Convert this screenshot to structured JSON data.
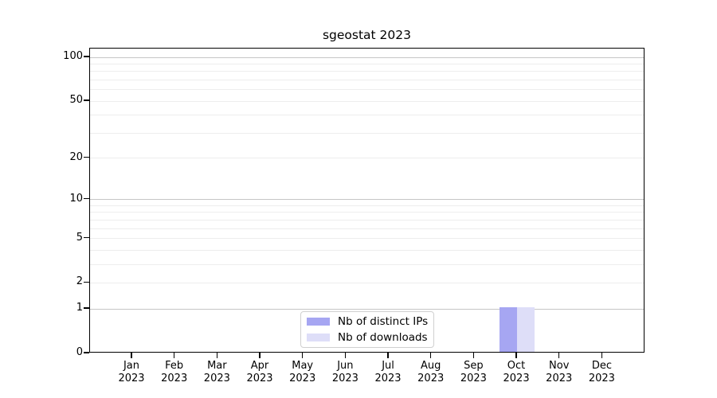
{
  "title": "sgeostat 2023",
  "chart_data": {
    "type": "bar",
    "title": "sgeostat 2023",
    "categories": [
      "Jan 2023",
      "Feb 2023",
      "Mar 2023",
      "Apr 2023",
      "May 2023",
      "Jun 2023",
      "Jul 2023",
      "Aug 2023",
      "Sep 2023",
      "Oct 2023",
      "Nov 2023",
      "Dec 2023"
    ],
    "series": [
      {
        "name": "Nb of distinct IPs",
        "color": "#a6a6f2",
        "values": [
          0,
          0,
          0,
          0,
          0,
          0,
          0,
          0,
          0,
          1,
          0,
          0
        ]
      },
      {
        "name": "Nb of downloads",
        "color": "#dedef8",
        "values": [
          0,
          0,
          0,
          0,
          0,
          0,
          0,
          0,
          0,
          1,
          0,
          0
        ]
      }
    ],
    "xlabel": "",
    "ylabel": "",
    "yscale": "log1p",
    "ylim": [
      0,
      115
    ],
    "y_tick_values": [
      0,
      1,
      2,
      5,
      10,
      20,
      50,
      100
    ],
    "y_tick_labels": [
      "0",
      "1",
      "2",
      "5",
      "10",
      "20",
      "50",
      "100"
    ],
    "major_grid_values": [
      1,
      10,
      100
    ],
    "minor_grid_values": [
      2,
      3,
      4,
      5,
      6,
      7,
      8,
      9,
      20,
      30,
      40,
      50,
      60,
      70,
      80,
      90
    ],
    "grid": true,
    "legend_position": "bottom-center",
    "colors": {
      "axis": "#000000",
      "major_grid": "#c6c6c6",
      "minor_grid": "#ededed",
      "background": "#ffffff",
      "legend_border": "#d0d0d0"
    }
  }
}
